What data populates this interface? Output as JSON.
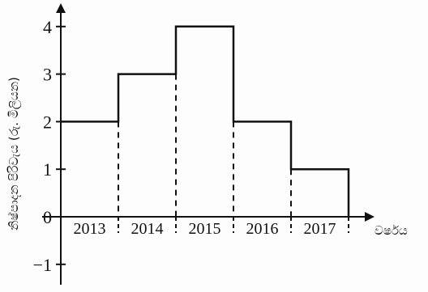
{
  "chart_data": {
    "type": "step",
    "categories": [
      "2013",
      "2014",
      "2015",
      "2016",
      "2017"
    ],
    "values": [
      2,
      3,
      4,
      2,
      1
    ],
    "xlabel": "වර්ෂය",
    "ylabel": "නිෂ්පාදන පිරිවැය (රු. මිලියන)",
    "yticks": [
      -1,
      0,
      1,
      2,
      3,
      4
    ],
    "ylim": [
      -1.5,
      4.5
    ],
    "grid": false,
    "line_color": "#111111"
  }
}
